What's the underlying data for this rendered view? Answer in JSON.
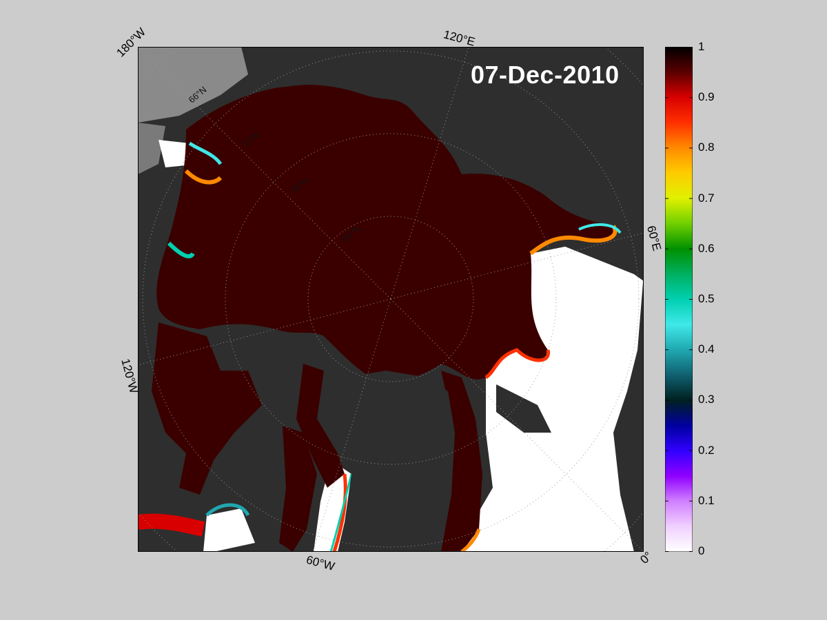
{
  "map": {
    "date": "07-Dec-2010",
    "longitude_labels": [
      "180°W",
      "120°E",
      "120°W",
      "60°E",
      "60°W",
      "0°"
    ],
    "latitude_labels": [
      "66°N",
      "72°N",
      "78°N",
      "84°N"
    ],
    "colors": {
      "ocean_ice_high": "#3a0000",
      "land": "#2e2e2e",
      "land_light": "#8a8a8a",
      "open_water": "#ffffff",
      "figure_bg": "#cccccc"
    }
  },
  "colorbar": {
    "label_range": [
      0,
      1
    ],
    "ticks": [
      "1",
      "0.9",
      "0.8",
      "0.7",
      "0.6",
      "0.5",
      "0.4",
      "0.3",
      "0.2",
      "0.1",
      "0"
    ],
    "stops": [
      {
        "value": 1.0,
        "color": "#000000"
      },
      {
        "value": 0.95,
        "color": "#5a0000"
      },
      {
        "value": 0.9,
        "color": "#d80000"
      },
      {
        "value": 0.85,
        "color": "#ff3000"
      },
      {
        "value": 0.8,
        "color": "#ff8a00"
      },
      {
        "value": 0.75,
        "color": "#ffcc00"
      },
      {
        "value": 0.7,
        "color": "#e0f000"
      },
      {
        "value": 0.65,
        "color": "#70d000"
      },
      {
        "value": 0.6,
        "color": "#009000"
      },
      {
        "value": 0.55,
        "color": "#00b060"
      },
      {
        "value": 0.5,
        "color": "#00d0b0"
      },
      {
        "value": 0.45,
        "color": "#40e8e8"
      },
      {
        "value": 0.4,
        "color": "#20a8b0"
      },
      {
        "value": 0.35,
        "color": "#106070"
      },
      {
        "value": 0.3,
        "color": "#002020"
      },
      {
        "value": 0.25,
        "color": "#0000a0"
      },
      {
        "value": 0.2,
        "color": "#3000ff"
      },
      {
        "value": 0.15,
        "color": "#9000ff"
      },
      {
        "value": 0.1,
        "color": "#d080ff"
      },
      {
        "value": 0.05,
        "color": "#f0d0ff"
      },
      {
        "value": 0.0,
        "color": "#ffffff"
      }
    ]
  }
}
